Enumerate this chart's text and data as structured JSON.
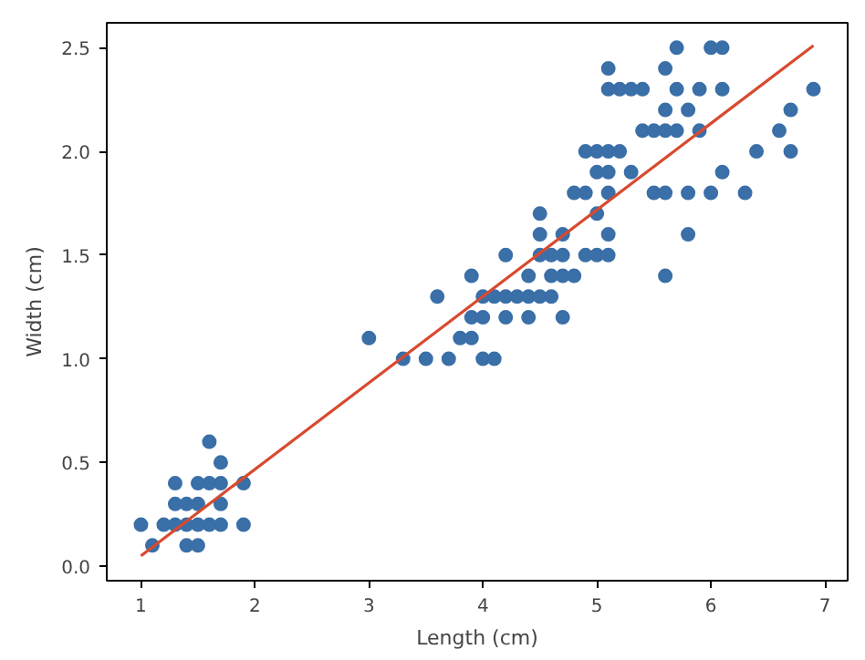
{
  "chart_data": {
    "type": "scatter",
    "xlabel": "Length (cm)",
    "ylabel": "Width (cm)",
    "xlim": [
      0.7,
      7.2
    ],
    "ylim": [
      -0.07,
      2.62
    ],
    "xticks": [
      1,
      2,
      3,
      4,
      5,
      6,
      7
    ],
    "yticks": [
      {
        "value": 0,
        "label": "0.0"
      },
      {
        "value": 0.5,
        "label": "0.5"
      },
      {
        "value": 1,
        "label": "1.0"
      },
      {
        "value": 1.5,
        "label": "1.5"
      },
      {
        "value": 2,
        "label": "2.0"
      },
      {
        "value": 2.5,
        "label": "2.5"
      }
    ],
    "grid": false,
    "series": [
      {
        "color": "#3a6fa8",
        "marker": "circle",
        "x": [
          1.0,
          1.1,
          1.2,
          1.3,
          1.3,
          1.3,
          1.4,
          1.4,
          1.4,
          1.5,
          1.5,
          1.5,
          1.5,
          1.6,
          1.6,
          1.6,
          1.7,
          1.7,
          1.7,
          1.7,
          1.9,
          1.9,
          3.0,
          3.3,
          3.5,
          3.6,
          3.7,
          3.8,
          3.9,
          3.9,
          3.9,
          4.0,
          4.0,
          4.0,
          4.1,
          4.1,
          4.2,
          4.2,
          4.2,
          4.3,
          4.4,
          4.4,
          4.4,
          4.5,
          4.5,
          4.5,
          4.6,
          4.6,
          4.6,
          4.7,
          4.7,
          4.7,
          4.7,
          4.8,
          4.8,
          4.9,
          5.0,
          5.1,
          4.5,
          4.9,
          4.9,
          5.0,
          5.0,
          5.0,
          5.1,
          5.1,
          5.1,
          5.1,
          5.1,
          5.1,
          5.2,
          5.2,
          5.3,
          5.3,
          5.4,
          5.4,
          5.5,
          5.5,
          5.6,
          5.6,
          5.6,
          5.6,
          5.6,
          5.7,
          5.7,
          5.7,
          5.8,
          5.8,
          5.8,
          5.9,
          5.9,
          6.0,
          6.0,
          6.1,
          6.1,
          6.1,
          6.3,
          6.4,
          6.6,
          6.7,
          6.7,
          6.9
        ],
        "values": [
          0.2,
          0.1,
          0.2,
          0.2,
          0.3,
          0.4,
          0.1,
          0.2,
          0.3,
          0.1,
          0.2,
          0.3,
          0.4,
          0.2,
          0.4,
          0.6,
          0.2,
          0.3,
          0.4,
          0.5,
          0.2,
          0.4,
          1.1,
          1.0,
          1.0,
          1.3,
          1.0,
          1.1,
          1.1,
          1.2,
          1.4,
          1.0,
          1.2,
          1.3,
          1.0,
          1.3,
          1.2,
          1.3,
          1.5,
          1.3,
          1.2,
          1.3,
          1.4,
          1.3,
          1.5,
          1.6,
          1.3,
          1.4,
          1.5,
          1.2,
          1.4,
          1.5,
          1.6,
          1.4,
          1.8,
          1.5,
          1.7,
          1.6,
          1.7,
          1.8,
          2.0,
          1.5,
          1.9,
          2.0,
          1.5,
          1.8,
          1.9,
          2.0,
          2.3,
          2.4,
          2.0,
          2.3,
          1.9,
          2.3,
          2.1,
          2.3,
          1.8,
          2.1,
          1.4,
          1.8,
          2.1,
          2.2,
          2.4,
          2.1,
          2.3,
          2.5,
          1.6,
          1.8,
          2.2,
          2.1,
          2.3,
          1.8,
          2.5,
          1.9,
          2.3,
          2.5,
          1.8,
          2.0,
          2.1,
          2.0,
          2.2,
          2.3
        ]
      },
      {
        "type": "line",
        "color": "#d84a2f",
        "line_style": "solid",
        "x": [
          1.0,
          6.9
        ],
        "values": [
          0.05,
          2.51
        ]
      }
    ]
  }
}
